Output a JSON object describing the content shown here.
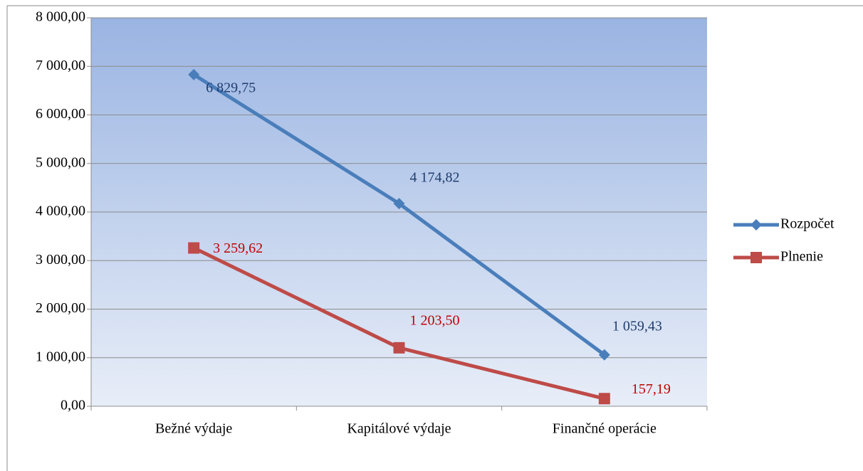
{
  "chart_data": {
    "type": "line",
    "categories": [
      "Bežné výdaje",
      "Kapitálové výdaje",
      "Finančné operácie"
    ],
    "series": [
      {
        "name": "Rozpočet",
        "color": "#4a7ebb",
        "label_color": "#1f3d6e",
        "marker": "diamond",
        "values": [
          6829.75,
          4174.82,
          1059.43
        ],
        "value_labels": [
          "6 829,75",
          "4 174,82",
          "1 059,43"
        ]
      },
      {
        "name": "Plnenie",
        "color": "#be4b48",
        "label_color": "#c00000",
        "marker": "square",
        "values": [
          3259.62,
          1203.5,
          157.19
        ],
        "value_labels": [
          "3 259,62",
          "1 203,50",
          "157,19"
        ]
      }
    ],
    "ylim": [
      0,
      8000
    ],
    "yticks": [
      {
        "value": 0,
        "label": "0,00"
      },
      {
        "value": 1000,
        "label": "1 000,00"
      },
      {
        "value": 2000,
        "label": "2 000,00"
      },
      {
        "value": 3000,
        "label": "3 000,00"
      },
      {
        "value": 4000,
        "label": "4 000,00"
      },
      {
        "value": 5000,
        "label": "5 000,00"
      },
      {
        "value": 6000,
        "label": "6 000,00"
      },
      {
        "value": 7000,
        "label": "7 000,00"
      },
      {
        "value": 8000,
        "label": "8 000,00"
      }
    ],
    "grid": true,
    "legend": "right"
  }
}
